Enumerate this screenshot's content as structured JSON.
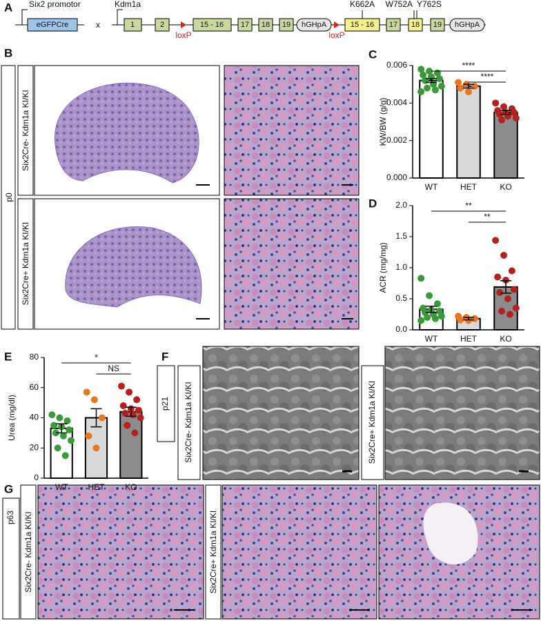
{
  "panels": [
    "A",
    "B",
    "C",
    "D",
    "E",
    "F",
    "G"
  ],
  "diagram": {
    "promoter": "Six2 promotor",
    "cre": "eGFPCre",
    "cross": "x",
    "gene": "Kdm1a",
    "exons": [
      "1",
      "2",
      "15 - 16",
      "17",
      "18",
      "19"
    ],
    "polya": "hGHpA",
    "loxp": "loxP",
    "mutant_exons": [
      "15 - 16",
      "17",
      "18",
      "19"
    ],
    "mutations": [
      "K662A",
      "W752A",
      "Y762S"
    ]
  },
  "ages": [
    "p0",
    "p21",
    "p63"
  ],
  "genotypes": [
    "Six2Cre- Kdm1a KI/KI",
    "Six2Cre+ Kdm1a KI/KI"
  ],
  "chart_data": [
    {
      "type": "bar",
      "y_label": "KW/BW (g/g)",
      "categories": [
        "WT",
        "HET",
        "KO"
      ],
      "values": [
        0.0052,
        0.0049,
        0.0035
      ],
      "errors": [
        0.0001,
        0.0001,
        0.0001
      ],
      "points": [
        [
          0.0058,
          0.0057,
          0.0056,
          0.0055,
          0.0054,
          0.0053,
          0.0052,
          0.005,
          0.0049,
          0.0048,
          0.0047,
          0.0046
        ],
        [
          0.0051,
          0.005,
          0.0049,
          0.0048,
          0.0046
        ],
        [
          0.004,
          0.0038,
          0.0037,
          0.0036,
          0.0035,
          0.0035,
          0.0034,
          0.0033,
          0.0032,
          0.0031
        ]
      ],
      "bar_colors": [
        "#ffffff",
        "#d9d9d9",
        "#8c8c8c"
      ],
      "point_colors": [
        "#3a9a3a",
        "#e87722",
        "#b52020"
      ],
      "ylim": [
        0,
        0.006
      ],
      "yticks": [
        {
          "value": 0,
          "label": "0.000"
        },
        0.002,
        0.004,
        0.006
      ],
      "annotations": [
        "****",
        "****"
      ]
    },
    {
      "type": "bar",
      "y_label": "ACR (mg/mg)",
      "categories": [
        "WT",
        "HET",
        "KO"
      ],
      "values": [
        0.33,
        0.18,
        0.69
      ],
      "errors": [
        0.05,
        0.02,
        0.1
      ],
      "points": [
        [
          0.83,
          0.55,
          0.42,
          0.35,
          0.32,
          0.3,
          0.28,
          0.25,
          0.22,
          0.2,
          0.18,
          0.15
        ],
        [
          0.22,
          0.2,
          0.18,
          0.16,
          0.15
        ],
        [
          1.44,
          1.2,
          0.95,
          0.85,
          0.8,
          0.65,
          0.6,
          0.5,
          0.35,
          0.3,
          0.25
        ]
      ],
      "bar_colors": [
        "#ffffff",
        "#d9d9d9",
        "#8c8c8c"
      ],
      "point_colors": [
        "#3a9a3a",
        "#e87722",
        "#b52020"
      ],
      "ylim": [
        0,
        2
      ],
      "yticks": [
        {
          "value": 0,
          "label": "0.0"
        },
        0.5,
        {
          "value": 1,
          "label": "1.0"
        },
        1.5,
        {
          "value": 2,
          "label": "2.0"
        }
      ],
      "annotations": [
        "**",
        "**"
      ]
    },
    {
      "type": "bar",
      "y_label": "Urea (mg/dl)",
      "categories": [
        "WT",
        "HET",
        "KO"
      ],
      "values": [
        33,
        40,
        44
      ],
      "errors": [
        3,
        6,
        3
      ],
      "points": [
        [
          42,
          40,
          38,
          35,
          34,
          32,
          30,
          28,
          25,
          20,
          15
        ],
        [
          57,
          52,
          40,
          28,
          20
        ],
        [
          61,
          57,
          52,
          48,
          46,
          45,
          43,
          42,
          40,
          35,
          30
        ]
      ],
      "bar_colors": [
        "#ffffff",
        "#d9d9d9",
        "#8c8c8c"
      ],
      "point_colors": [
        "#3a9a3a",
        "#e87722",
        "#b52020"
      ],
      "ylim": [
        0,
        80
      ],
      "yticks": [
        0,
        20,
        40,
        60,
        80
      ],
      "annotations": [
        "*",
        "NS"
      ]
    }
  ]
}
